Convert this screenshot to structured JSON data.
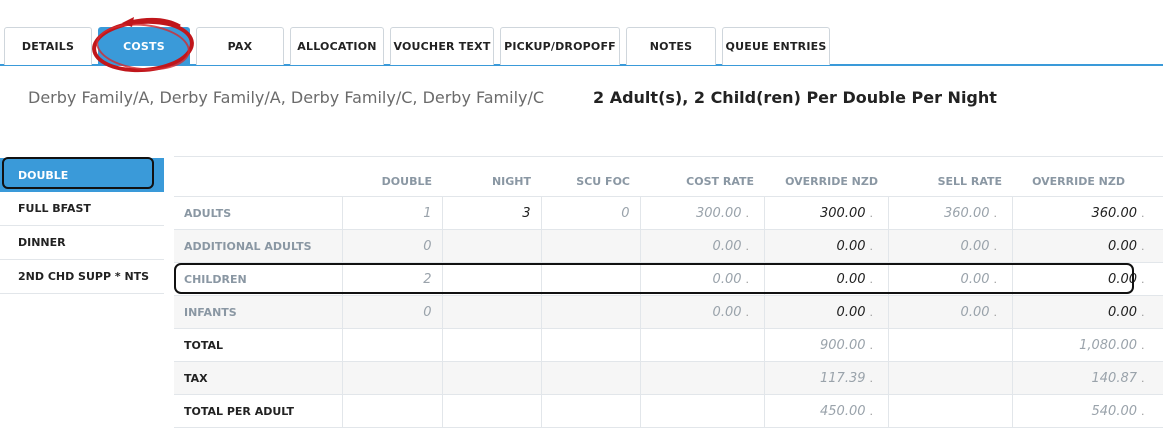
{
  "tabs": [
    {
      "label": "DETAILS",
      "active": false
    },
    {
      "label": "COSTS",
      "active": true
    },
    {
      "label": "PAX",
      "active": false
    },
    {
      "label": "ALLOCATION",
      "active": false
    },
    {
      "label": "VOUCHER TEXT",
      "active": false
    },
    {
      "label": "PICKUP/DROPOFF",
      "active": false
    },
    {
      "label": "NOTES",
      "active": false
    },
    {
      "label": "QUEUE ENTRIES",
      "active": false
    }
  ],
  "header": {
    "names": "Derby Family/A, Derby Family/A, Derby Family/C, Derby Family/C",
    "rate_description": "2 Adult(s), 2 Child(ren) Per Double Per Night"
  },
  "sidebar": {
    "items": [
      {
        "label": "DOUBLE",
        "active": true
      },
      {
        "label": "FULL BFAST",
        "active": false
      },
      {
        "label": "DINNER",
        "active": false
      },
      {
        "label": "2ND CHD SUPP * NTS",
        "active": false
      }
    ]
  },
  "table": {
    "columns": [
      "",
      "DOUBLE",
      "NIGHT",
      "SCU FOC",
      "COST RATE",
      "OVERRIDE NZD",
      "SELL RATE",
      "OVERRIDE NZD"
    ],
    "rows": {
      "adults": {
        "label": "ADULTS",
        "double": "1",
        "night": "3",
        "scu_foc": "0",
        "cost_rate": "300.00",
        "override_cost": "300.00",
        "sell_rate": "360.00",
        "override_sell": "360.00"
      },
      "additional_adults": {
        "label": "ADDITIONAL ADULTS",
        "double": "0",
        "cost_rate": "0.00",
        "override_cost": "0.00",
        "sell_rate": "0.00",
        "override_sell": "0.00"
      },
      "children": {
        "label": "CHILDREN",
        "double": "2",
        "cost_rate": "0.00",
        "override_cost": "0.00",
        "sell_rate": "0.00",
        "override_sell": "0.00"
      },
      "infants": {
        "label": "INFANTS",
        "double": "0",
        "cost_rate": "0.00",
        "override_cost": "0.00",
        "sell_rate": "0.00",
        "override_sell": "0.00"
      },
      "total": {
        "label": "TOTAL",
        "override_cost": "900.00",
        "override_sell": "1,080.00"
      },
      "tax": {
        "label": "TAX",
        "override_cost": "117.39",
        "override_sell": "140.87"
      },
      "total_per_adult": {
        "label": "TOTAL PER ADULT",
        "override_cost": "450.00",
        "override_sell": "540.00"
      }
    },
    "suffix_dot": "."
  },
  "colors": {
    "accent": "#3a9ad9",
    "annotation_red": "#c0161b"
  }
}
